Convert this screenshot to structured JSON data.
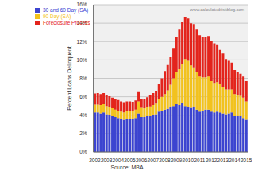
{
  "chart_data": {
    "type": "bar",
    "stacked": true,
    "grid": true,
    "legend": "top-left",
    "y_label": "Percent Loans Delinquent",
    "annotations": [
      "Source: MBA",
      "www.calculatedriskblog.com"
    ],
    "categories": [
      "2002",
      null,
      null,
      null,
      "2003",
      null,
      null,
      null,
      "2004",
      null,
      null,
      null,
      "2005",
      null,
      null,
      null,
      "2006",
      null,
      null,
      null,
      "2007",
      null,
      null,
      null,
      "2008",
      null,
      null,
      null,
      "2009",
      null,
      null,
      null,
      "2010",
      null,
      null,
      null,
      "2011",
      null,
      null,
      null,
      "2012",
      null,
      null,
      null,
      "2013",
      null,
      null,
      null,
      "2014",
      null,
      null,
      null,
      "2015"
    ],
    "ylim": [
      0,
      16
    ],
    "yticks": [
      {
        "value": 0,
        "label": "0%"
      },
      {
        "value": 2,
        "label": "2%"
      },
      {
        "value": 4,
        "label": "4%"
      },
      {
        "value": 6,
        "label": "6%"
      },
      {
        "value": 8,
        "label": "8%"
      },
      {
        "value": 10,
        "label": "10%"
      },
      {
        "value": 12,
        "label": "12%"
      },
      {
        "value": 14,
        "label": "14%"
      },
      {
        "value": 16,
        "label": "16%"
      }
    ],
    "series": [
      {
        "name": "30 and 60 Day (SA)",
        "color": "#3c44d0",
        "values": [
          4.3,
          4.3,
          4.2,
          4.3,
          4.1,
          4.0,
          3.9,
          3.8,
          3.7,
          3.6,
          3.5,
          3.6,
          3.6,
          3.6,
          3.7,
          4.2,
          3.8,
          3.8,
          3.9,
          3.9,
          4.0,
          4.1,
          4.4,
          4.5,
          4.6,
          4.7,
          4.9,
          5.0,
          5.2,
          5.1,
          5.3,
          5.0,
          4.9,
          4.8,
          4.9,
          4.6,
          4.4,
          4.5,
          4.6,
          4.6,
          4.4,
          4.3,
          4.4,
          4.3,
          4.2,
          4.1,
          4.2,
          4.3,
          3.9,
          3.9,
          3.9,
          3.7,
          3.5
        ]
      },
      {
        "name": "90 Day (SA)",
        "color": "#f2c21e",
        "values": [
          0.85,
          0.85,
          0.9,
          0.9,
          0.9,
          0.85,
          0.85,
          0.8,
          0.8,
          0.8,
          0.8,
          0.85,
          0.85,
          0.85,
          0.9,
          1.3,
          1.0,
          0.95,
          1.0,
          1.05,
          1.1,
          1.15,
          1.3,
          1.5,
          1.7,
          2.0,
          2.4,
          3.0,
          3.5,
          3.9,
          4.3,
          5.1,
          5.0,
          4.6,
          4.3,
          4.1,
          3.8,
          3.6,
          3.5,
          3.6,
          3.3,
          3.2,
          3.2,
          3.1,
          2.9,
          2.7,
          2.6,
          2.5,
          2.4,
          2.3,
          2.2,
          2.2,
          2.0
        ]
      },
      {
        "name": "Foreclosure Process",
        "color": "#e3241c",
        "values": [
          1.2,
          1.25,
          1.2,
          1.2,
          1.15,
          1.2,
          1.15,
          1.15,
          1.15,
          1.1,
          1.1,
          1.05,
          1.05,
          1.0,
          1.0,
          1.0,
          1.0,
          1.0,
          1.05,
          1.2,
          1.3,
          1.4,
          1.7,
          2.0,
          2.5,
          2.75,
          3.0,
          3.3,
          3.85,
          4.3,
          4.5,
          4.6,
          4.6,
          4.6,
          4.7,
          4.6,
          4.5,
          4.4,
          4.4,
          4.4,
          4.4,
          4.3,
          4.1,
          3.7,
          3.6,
          3.3,
          3.1,
          2.9,
          2.6,
          2.5,
          2.4,
          2.3,
          2.2
        ]
      }
    ]
  }
}
